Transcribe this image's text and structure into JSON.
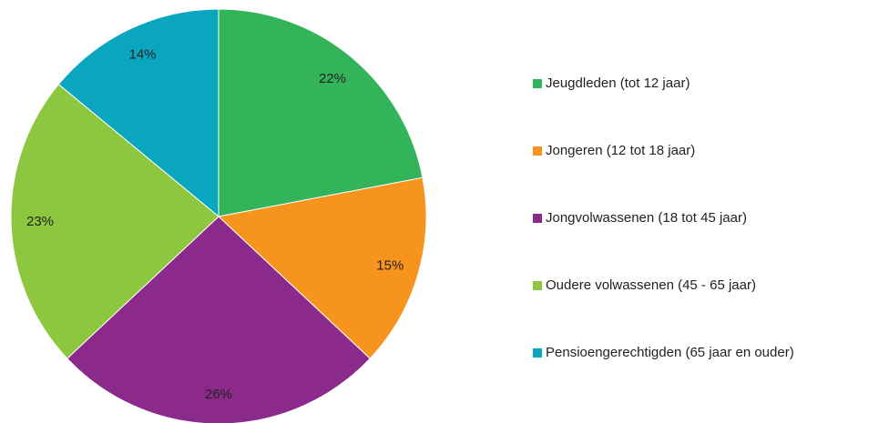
{
  "chart_data": {
    "type": "pie",
    "categories": [
      "Jeugdleden (tot 12 jaar)",
      "Jongeren (12 tot 18 jaar)",
      "Jongvolwassenen (18 tot 45 jaar)",
      "Oudere volwassenen (45 - 65 jaar)",
      "Pensioengerechtigden (65 jaar en ouder)"
    ],
    "values": [
      22,
      15,
      26,
      23,
      14
    ],
    "value_labels": [
      "22%",
      "15%",
      "26%",
      "23%",
      "14%"
    ],
    "colors": [
      "#33b45a",
      "#f7941d",
      "#8b2a8a",
      "#8dc63f",
      "#0aa6bf"
    ],
    "legend": "right"
  }
}
